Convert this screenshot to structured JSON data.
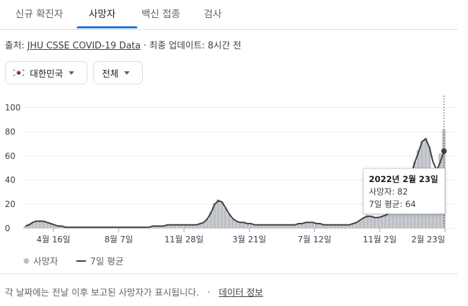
{
  "tabs": [
    {
      "label": "신규 확진자",
      "active": false
    },
    {
      "label": "사망자",
      "active": true
    },
    {
      "label": "백신 접종",
      "active": false
    },
    {
      "label": "검사",
      "active": false
    }
  ],
  "source": {
    "prefix": "출처: ",
    "link": "JHU CSSE COVID-19 Data",
    "suffix": " · 최종 업데이트: 8시간 전"
  },
  "filters": {
    "region": "대한민국",
    "range": "전체"
  },
  "colors": {
    "bars": "#bdc1c6",
    "avg_line": "#3c4043",
    "accent": "#1a73e8"
  },
  "tooltip": {
    "date": "2022년 2월 23일",
    "deaths_label": "사망자",
    "deaths": 82,
    "avg_label": "7일 평균",
    "avg": 64
  },
  "chart_data": {
    "type": "bar",
    "ylim": [
      0,
      110
    ],
    "yticks": [
      0,
      20,
      40,
      60,
      80,
      100
    ],
    "xticks": [
      "4월 16일",
      "8월 7일",
      "11월 28일",
      "3월 21일",
      "7월 12일",
      "11월 2일",
      "2월 23일"
    ],
    "series": [
      {
        "name": "사망자",
        "type": "bar",
        "values": [
          2,
          4,
          5,
          6,
          7,
          6,
          5,
          4,
          3,
          2,
          2,
          1,
          1,
          1,
          1,
          1,
          1,
          1,
          1,
          1,
          1,
          1,
          1,
          1,
          1,
          1,
          1,
          1,
          1,
          1,
          1,
          1,
          1,
          1,
          1,
          2,
          2,
          2,
          2,
          3,
          3,
          3,
          3,
          3,
          3,
          3,
          3,
          3,
          4,
          5,
          8,
          14,
          21,
          24,
          22,
          17,
          12,
          8,
          6,
          5,
          5,
          4,
          4,
          3,
          3,
          3,
          3,
          3,
          3,
          3,
          3,
          3,
          3,
          3,
          3,
          4,
          4,
          5,
          5,
          5,
          4,
          4,
          3,
          3,
          3,
          3,
          3,
          3,
          3,
          3,
          4,
          5,
          7,
          9,
          11,
          10,
          9,
          9,
          10,
          11,
          13,
          16,
          20,
          25,
          30,
          36,
          45,
          55,
          65,
          72,
          75,
          68,
          50,
          45,
          62,
          82
        ]
      },
      {
        "name": "7일 평균",
        "type": "line",
        "values": [
          2,
          3,
          5,
          6,
          6,
          6,
          5,
          4,
          3,
          2,
          2,
          1,
          1,
          1,
          1,
          1,
          1,
          1,
          1,
          1,
          1,
          1,
          1,
          1,
          1,
          1,
          1,
          1,
          1,
          1,
          1,
          1,
          1,
          1,
          1,
          2,
          2,
          2,
          2,
          3,
          3,
          3,
          3,
          3,
          3,
          3,
          3,
          3,
          4,
          5,
          8,
          13,
          20,
          23,
          22,
          17,
          12,
          8,
          6,
          5,
          5,
          4,
          4,
          3,
          3,
          3,
          3,
          3,
          3,
          3,
          3,
          3,
          3,
          3,
          3,
          4,
          4,
          5,
          5,
          5,
          4,
          4,
          3,
          3,
          3,
          3,
          3,
          3,
          3,
          3,
          4,
          5,
          7,
          9,
          10,
          10,
          9,
          9,
          10,
          11,
          13,
          16,
          20,
          25,
          30,
          36,
          45,
          55,
          63,
          72,
          74,
          67,
          55,
          48,
          55,
          64
        ]
      }
    ]
  },
  "legend": {
    "bars_label": "사망자",
    "line_label": "7일 평균"
  },
  "footer": {
    "note": "각 날짜에는 전날 이후 보고된 사망자가 표시됩니다.",
    "separator": "·",
    "link": "데이터 정보"
  }
}
